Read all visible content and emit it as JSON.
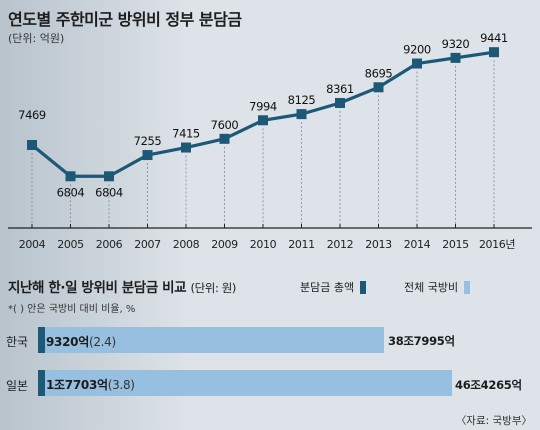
{
  "title": "연도별 주한미군 방위비 정부 분담금",
  "unit": "(단위: 억원)",
  "chart_data": [
    {
      "type": "line",
      "title": "연도별 주한미군 방위비 정부 분담금",
      "subtitle": "(단위: 억원)",
      "categories": [
        "2004",
        "2005",
        "2006",
        "2007",
        "2008",
        "2009",
        "2010",
        "2011",
        "2012",
        "2013",
        "2014",
        "2015",
        "2016년"
      ],
      "values": [
        7469,
        6804,
        6804,
        7255,
        7415,
        7600,
        7994,
        8125,
        8361,
        8695,
        9200,
        9320,
        9441
      ],
      "ylim": [
        6300,
        9700
      ],
      "grid": false,
      "color": "#1d5877"
    },
    {
      "type": "bar",
      "title": "지난해 한·일 방위비 분담금 비교",
      "subtitle": "(단위: 원)",
      "categories": [
        "한국",
        "일본"
      ],
      "series": [
        {
          "name": "분담금 총액",
          "values_text": [
            "9320억",
            "1조7703억"
          ],
          "share_pct": [
            2.4,
            3.8
          ],
          "color": "#1d5877"
        },
        {
          "name": "전체 국방비",
          "values_text": [
            "38조7995억",
            "46조4265억"
          ],
          "values_eok": [
            387995,
            464265
          ],
          "color": "#97bfe0"
        }
      ]
    }
  ],
  "section2": {
    "title": "지난해 한·일 방위비 분담금 비교",
    "unit": "(단위: 원)",
    "legend_share": "분담금 총액",
    "legend_total": "전체 국방비",
    "note": "*( ) 안은 국방비 대비 비율, %",
    "rows": [
      {
        "label": "한국",
        "share": "9320억",
        "pct": "(2.4)",
        "total": "38조7995억"
      },
      {
        "label": "일본",
        "share": "1조7703억",
        "pct": "(3.8)",
        "total": "46조4265억"
      }
    ]
  },
  "source": "〈자료: 국방부〉"
}
